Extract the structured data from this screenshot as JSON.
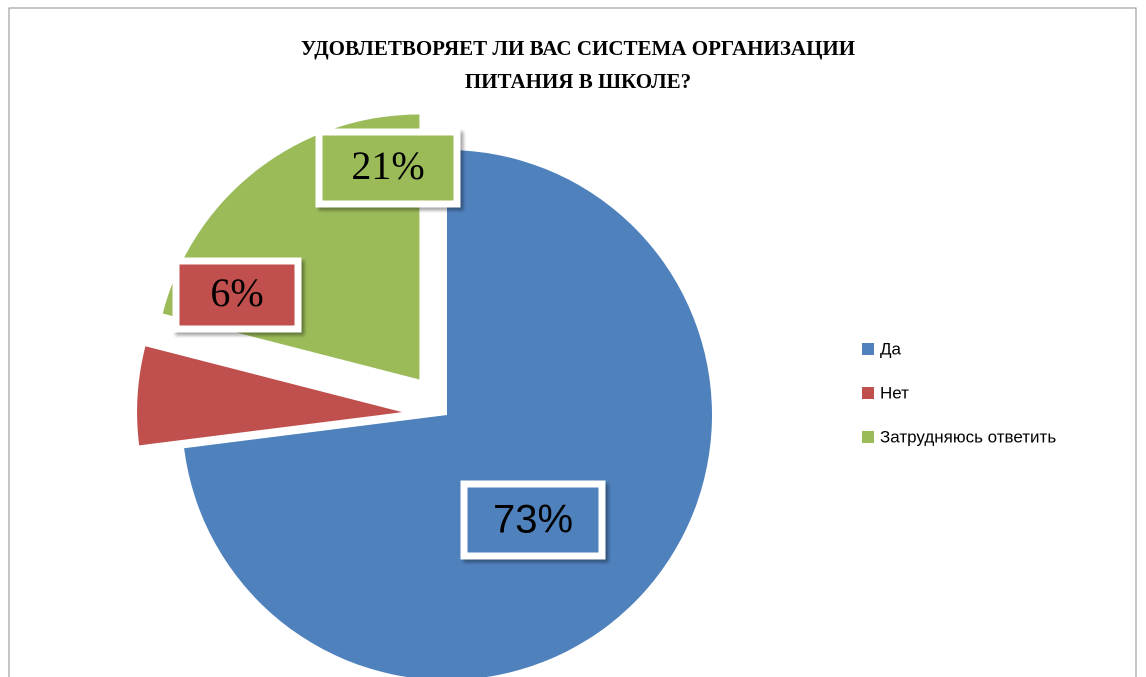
{
  "chart_data": {
    "type": "pie",
    "title": [
      "УДОВЛЕТВОРЯЕТ ЛИ ВАС СИСТЕМА ОРГАНИЗАЦИИ",
      "ПИТАНИЯ В ШКОЛЕ?"
    ],
    "categories": [
      "Да",
      "Нет",
      "Затрудняюсь ответить"
    ],
    "values": [
      73,
      6,
      21
    ],
    "value_labels": [
      "73%",
      "6%",
      "21%"
    ],
    "colors": [
      "#4f81bd",
      "#c0504d",
      "#9bbb59"
    ],
    "legend": "right"
  }
}
